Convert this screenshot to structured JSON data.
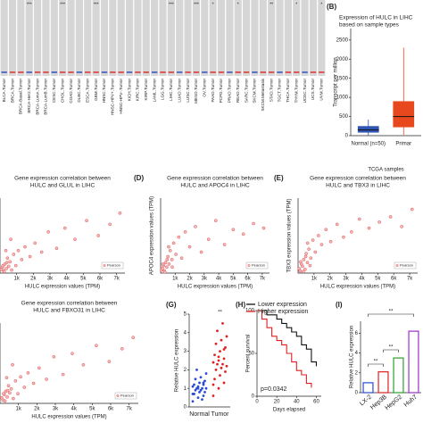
{
  "chart_data": [
    {
      "type": "box",
      "categories": [
        "BLCA.Tumor",
        "BRCA.Tumor",
        "BRCA-Basal.Tumor",
        "BRCA-Her2.Tumor",
        "BRCA-LumA.Tumor",
        "BRCA-LumB.Tumor",
        "CESC.Tumor",
        "CHOL.Tumor",
        "COAD.Tumor",
        "DLBC.Tumor",
        "ESCA.Tumor",
        "GBM.Tumor",
        "HNSC.Tumor",
        "HNSC-HPV+.Tumor",
        "HNSC-HPV-.Tumor",
        "KICH.Tumor",
        "KIRC.Tumor",
        "KIRP.Tumor",
        "LAML.Tumor",
        "LGG.Tumor",
        "LIHC.Tumor",
        "LUAD.Tumor",
        "LUSC.Tumor",
        "MESO.Tumor",
        "OV.Tumor",
        "PAAD.Tumor",
        "PCPG.Tumor",
        "PRAD.Tumor",
        "READ.Tumor",
        "SARC.Tumor",
        "SKCM.Tumor",
        "SKCM.Metastasis",
        "STAD.Tumor",
        "TGCT.Tumor",
        "THCA.Tumor",
        "THYM.Tumor",
        "UCEC.Tumor",
        "UCS.Tumor",
        "UVM.Tumor"
      ],
      "significance": [
        null,
        null,
        null,
        "***",
        null,
        null,
        null,
        "***",
        null,
        null,
        null,
        "***",
        null,
        null,
        null,
        null,
        null,
        null,
        null,
        null,
        "***",
        null,
        null,
        "***",
        null,
        "*",
        null,
        null,
        "*",
        null,
        null,
        null,
        "**",
        null,
        null,
        "*",
        null,
        null,
        "*"
      ]
    },
    {
      "type": "box",
      "panel": "(B)",
      "title": [
        "Expression of HULC in LIHC",
        "based on sample types"
      ],
      "categories": [
        "Normal (n=50)",
        "Primar"
      ],
      "colors": [
        "#2f55b5",
        "#e8481e"
      ],
      "values": [
        [
          10,
          80,
          150,
          250,
          420
        ],
        [
          20,
          220,
          500,
          900,
          2300
        ]
      ],
      "ylim": [
        0,
        2800
      ],
      "yticks": [
        0,
        500,
        1000,
        1500,
        2000,
        2500
      ],
      "ylabel": "Transcript per million",
      "xlabel": "TCGA samples"
    },
    {
      "type": "scatter",
      "title": [
        "Gene expression correlation between",
        "HULC and GLUL in LIHC"
      ],
      "x": [
        80,
        150,
        220,
        300,
        380,
        450,
        520,
        600,
        700,
        820,
        950,
        1100,
        1300,
        1500,
        1800,
        2100,
        2500,
        2900,
        3400,
        3900,
        4500,
        5200,
        5900,
        6600,
        7200,
        250,
        400,
        350,
        180,
        650
      ],
      "values": [
        5,
        8,
        3,
        12,
        6,
        20,
        9,
        15,
        4,
        25,
        10,
        30,
        18,
        35,
        22,
        40,
        28,
        55,
        33,
        60,
        45,
        70,
        50,
        65,
        80,
        2,
        14,
        30,
        10,
        45
      ],
      "xlim": [
        0,
        7500
      ],
      "ylim": [
        0,
        100
      ],
      "xticks": [
        {
          "value": 1000,
          "label": "1k"
        },
        {
          "value": 2000,
          "label": "2k"
        },
        {
          "value": 3000,
          "label": "3k"
        },
        {
          "value": 4000,
          "label": "4k"
        },
        {
          "value": 5000,
          "label": "5k"
        },
        {
          "value": 6000,
          "label": "6k"
        },
        {
          "value": 7000,
          "label": "7k"
        }
      ],
      "xlabel": "HULC expression values (TPM)",
      "legend": "Pearson"
    },
    {
      "type": "scatter",
      "panel": "(D)",
      "title": [
        "Gene expression correlation between",
        "HULC and APOC4 in LIHC"
      ],
      "x": [
        60,
        120,
        200,
        260,
        340,
        420,
        500,
        580,
        660,
        780,
        900,
        1050,
        1250,
        1450,
        1700,
        2000,
        2400,
        2800,
        3300,
        3800,
        4400,
        5000,
        5700,
        6400,
        7100,
        300,
        450,
        150,
        550,
        800
      ],
      "values": [
        4,
        6,
        10,
        3,
        14,
        8,
        22,
        12,
        30,
        18,
        40,
        25,
        48,
        20,
        55,
        35,
        62,
        28,
        45,
        70,
        38,
        58,
        52,
        66,
        60,
        1,
        18,
        12,
        35,
        8
      ],
      "xlim": [
        0,
        7500
      ],
      "ylim": [
        0,
        100
      ],
      "xticks": [
        {
          "value": 1000,
          "label": "1k"
        },
        {
          "value": 2000,
          "label": "2k"
        },
        {
          "value": 3000,
          "label": "3k"
        },
        {
          "value": 4000,
          "label": "4k"
        },
        {
          "value": 5000,
          "label": "5k"
        },
        {
          "value": 6000,
          "label": "6k"
        },
        {
          "value": 7000,
          "label": "7k"
        }
      ],
      "xlabel": "HULC expression values (TPM)",
      "ylabel": "APOC4 expression values (TPM)",
      "legend": "Pearson"
    },
    {
      "type": "scatter",
      "panel": "(E)",
      "title": [
        "Gene expression correlation between",
        "HULC and TBX3 in LIHC"
      ],
      "x": [
        70,
        130,
        210,
        280,
        360,
        440,
        510,
        590,
        680,
        800,
        930,
        1080,
        1280,
        1480,
        1750,
        2050,
        2450,
        2850,
        3350,
        3850,
        4450,
        5100,
        5800,
        6500,
        7150,
        320,
        480,
        160,
        600,
        750
      ],
      "values": [
        6,
        3,
        12,
        9,
        18,
        5,
        26,
        14,
        32,
        20,
        44,
        28,
        50,
        38,
        58,
        42,
        65,
        48,
        55,
        72,
        60,
        68,
        75,
        62,
        85,
        2,
        22,
        15,
        40,
        10
      ],
      "xlim": [
        0,
        7500
      ],
      "ylim": [
        0,
        100
      ],
      "xticks": [
        {
          "value": 1000,
          "label": "1k"
        },
        {
          "value": 2000,
          "label": "2k"
        },
        {
          "value": 3000,
          "label": "3k"
        },
        {
          "value": 4000,
          "label": "4k"
        },
        {
          "value": 5000,
          "label": "5k"
        },
        {
          "value": 6000,
          "label": "6k"
        },
        {
          "value": 7000,
          "label": "7k"
        }
      ],
      "xlabel": "HULC expression values (TPM)",
      "ylabel": "TBX3 expression values (TPM)",
      "legend": "Pearson"
    },
    {
      "type": "scatter",
      "title": [
        "Gene expression correlation between",
        "HULC and FBXO31 in LIHC"
      ],
      "x": [
        90,
        160,
        230,
        310,
        390,
        460,
        530,
        610,
        720,
        840,
        970,
        1120,
        1320,
        1520,
        1820,
        2120,
        2520,
        2920,
        3420,
        3920,
        4520,
        5220,
        5920,
        6620,
        7220,
        270,
        420,
        360,
        190,
        680
      ],
      "values": [
        7,
        4,
        11,
        15,
        8,
        22,
        13,
        18,
        6,
        28,
        12,
        33,
        20,
        38,
        25,
        44,
        30,
        58,
        36,
        62,
        48,
        72,
        52,
        68,
        82,
        3,
        16,
        32,
        12,
        48
      ],
      "xlim": [
        0,
        7500
      ],
      "ylim": [
        0,
        100
      ],
      "xticks": [
        {
          "value": 1000,
          "label": "1k"
        },
        {
          "value": 2000,
          "label": "2k"
        },
        {
          "value": 3000,
          "label": "3k"
        },
        {
          "value": 4000,
          "label": "4k"
        },
        {
          "value": 5000,
          "label": "5k"
        },
        {
          "value": 6000,
          "label": "6k"
        },
        {
          "value": 7000,
          "label": "7k"
        }
      ],
      "xlabel": "HULC expression values (TPM)",
      "legend": "Pearson"
    },
    {
      "type": "strip",
      "panel": "(G)",
      "categories": [
        "Normal",
        "Tumor"
      ],
      "colors": [
        "#2a4bd7",
        "#e02020"
      ],
      "values": [
        [
          0.3,
          0.5,
          0.6,
          0.7,
          0.8,
          0.8,
          0.9,
          0.9,
          1.0,
          1.0,
          1.0,
          1.1,
          1.1,
          1.2,
          1.2,
          1.3,
          1.4,
          1.5,
          1.6,
          1.8,
          2.0,
          0.4,
          0.7,
          1.0,
          1.3
        ],
        [
          0.6,
          1.0,
          1.3,
          1.5,
          1.7,
          1.9,
          2.0,
          2.1,
          2.2,
          2.3,
          2.3,
          2.4,
          2.5,
          2.6,
          2.8,
          3.0,
          3.2,
          3.4,
          3.6,
          3.8,
          4.1,
          4.5,
          1.2,
          2.7,
          3.1
        ]
      ],
      "ylim": [
        0,
        5
      ],
      "yticks": [
        0,
        1,
        2,
        3,
        4,
        5
      ],
      "ylabel": "Relative HULC expression",
      "annotation": "**"
    },
    {
      "type": "line",
      "panel": "(H)",
      "series": [
        {
          "name": "Lower expression",
          "color": "#111111",
          "x": [
            0,
            5,
            10,
            20,
            25,
            30,
            35,
            40,
            45,
            50,
            55,
            60
          ],
          "values": [
            100,
            100,
            95,
            90,
            85,
            80,
            75,
            70,
            60,
            55,
            40,
            35
          ]
        },
        {
          "name": "Higher expression",
          "color": "#e02020",
          "x": [
            0,
            5,
            10,
            15,
            20,
            25,
            30,
            35,
            40,
            45,
            50,
            55
          ],
          "values": [
            100,
            90,
            80,
            70,
            65,
            60,
            50,
            40,
            30,
            25,
            15,
            10
          ]
        }
      ],
      "xlim": [
        0,
        65
      ],
      "ylim": [
        0,
        100
      ],
      "xticks": [
        0,
        20,
        40,
        60
      ],
      "yticks": [
        0,
        50,
        100
      ],
      "xlabel": "Days elapsed",
      "ylabel": "Percent survival",
      "annotation": "p=0.0342"
    },
    {
      "type": "bar",
      "panel": "(I)",
      "categories": [
        "LX-2",
        "Hep3B",
        "HepG2",
        "Huh7"
      ],
      "colors": [
        "#2a4bd7",
        "#e02020",
        "#2ca02c",
        "#9b30c8"
      ],
      "values": [
        1.0,
        2.1,
        3.5,
        6.2
      ],
      "ylim": [
        0,
        7.2
      ],
      "yticks": [
        0,
        2,
        4,
        6
      ],
      "ylabel": "Relative HULC expression",
      "annotations": [
        "**",
        "**",
        "**"
      ]
    }
  ]
}
